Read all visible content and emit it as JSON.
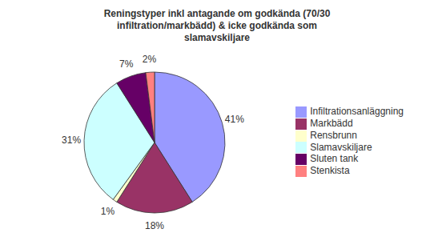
{
  "chart_data": {
    "type": "pie",
    "title": "Reningstyper inkl antagande om godkända (70/30\ninfiltration/markbädd) & icke godkända som\nslamavskiljare",
    "categories": [
      "Infiltrationsanläggning",
      "Markbädd",
      "Rensbrunn",
      "Slamavskiljare",
      "Sluten tank",
      "Stenkista"
    ],
    "values": [
      41,
      18,
      1,
      31,
      7,
      2
    ],
    "value_labels": [
      "41%",
      "18%",
      "1%",
      "31%",
      "7%",
      "2%"
    ],
    "colors": [
      "#9999FF",
      "#993366",
      "#FFFFCC",
      "#CCFFFF",
      "#660066",
      "#FF8080"
    ],
    "data_labels": true,
    "legend": "right"
  }
}
